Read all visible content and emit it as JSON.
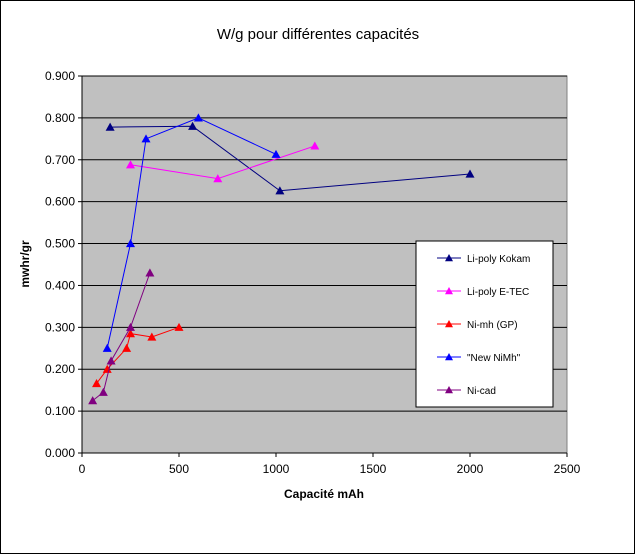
{
  "chart_data": {
    "type": "line",
    "title": "W/g pour différentes capacités",
    "xlabel": "Capacité mAh",
    "ylabel": "mwhr/gr",
    "xlim": [
      0,
      2500
    ],
    "ylim": [
      0,
      0.9
    ],
    "x_ticks": [
      "0",
      "500",
      "1000",
      "1500",
      "2000",
      "2500"
    ],
    "y_ticks": [
      "0.000",
      "0.100",
      "0.200",
      "0.300",
      "0.400",
      "0.500",
      "0.600",
      "0.700",
      "0.800",
      "0.900"
    ],
    "grid": "horizontal",
    "plot_background": "#c0c0c0",
    "legend_position": "right",
    "series": [
      {
        "name": "Li-poly Kokam",
        "color": "#000080",
        "marker": "triangle",
        "x": [
          145,
          570,
          1020,
          2000
        ],
        "y": [
          0.778,
          0.78,
          0.626,
          0.666
        ]
      },
      {
        "name": "Li-poly E-TEC",
        "color": "#ff00ff",
        "marker": "triangle",
        "x": [
          250,
          700,
          1200
        ],
        "y": [
          0.688,
          0.655,
          0.733
        ]
      },
      {
        "name": "Ni-mh (GP)",
        "color": "#ff0000",
        "marker": "triangle",
        "x": [
          75,
          130,
          230,
          250,
          360,
          500
        ],
        "y": [
          0.166,
          0.2,
          0.25,
          0.285,
          0.277,
          0.3
        ]
      },
      {
        "name": "\"New NiMh\"",
        "color": "#0000ff",
        "marker": "triangle",
        "x": [
          130,
          250,
          330,
          600,
          1000
        ],
        "y": [
          0.25,
          0.5,
          0.75,
          0.8,
          0.713
        ]
      },
      {
        "name": "Ni-cad",
        "color": "#800080",
        "marker": "triangle",
        "x": [
          55,
          110,
          150,
          250,
          350
        ],
        "y": [
          0.125,
          0.145,
          0.22,
          0.3,
          0.43
        ]
      }
    ]
  }
}
